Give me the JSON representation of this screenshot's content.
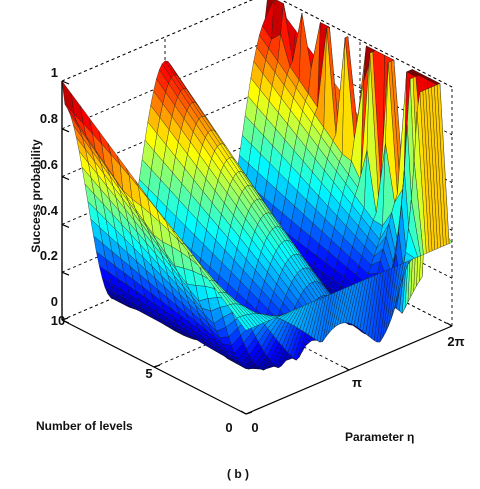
{
  "chart_data": {
    "type": "surface",
    "panel_label": "( b )",
    "zlabel": "Success probability",
    "xlabel": "Parameter η",
    "ylabel": "Number of levels",
    "x_ticks": [
      "0",
      "π",
      "2π"
    ],
    "y_ticks": [
      "0",
      "5",
      "10"
    ],
    "z_ticks": [
      "0",
      "0.2",
      "0.4",
      "0.6",
      "0.8",
      "1"
    ],
    "xlim": [
      "0",
      "2π"
    ],
    "ylim": [
      0,
      10
    ],
    "zlim": [
      0,
      1
    ],
    "colormap": "jet",
    "grid": true,
    "surface_function": "P(η, N) = cos²(N·η/4) / N² · [sin²(N·η/2) / sin²(η/2)] / 4 — Grover-type success probability, periodic in η with peaks reaching 1 at η = 0, π, 2π for large N",
    "grid_resolution": {
      "eta_samples": 72,
      "level_samples": 20
    }
  }
}
